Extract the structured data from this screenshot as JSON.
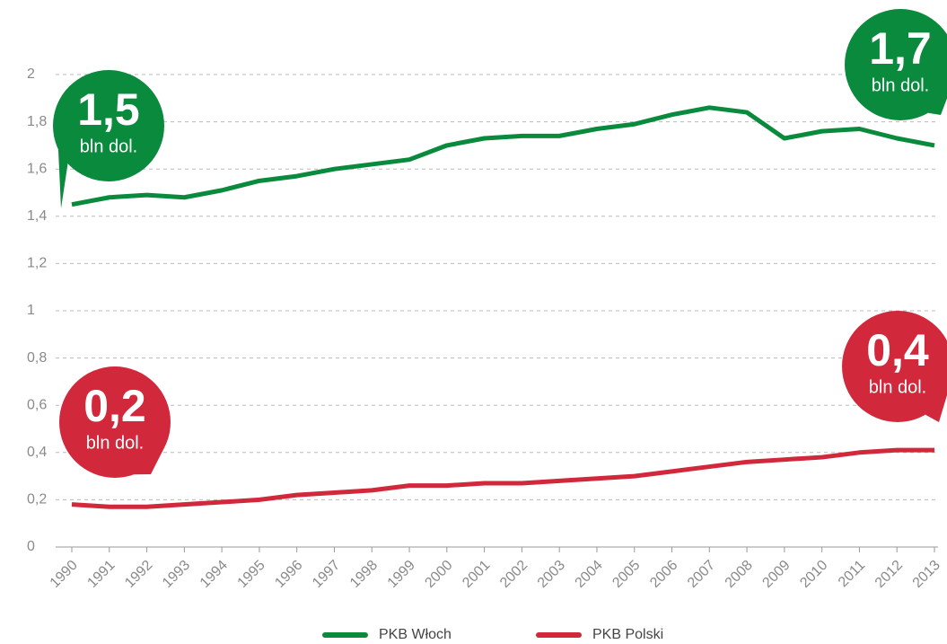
{
  "chart_data": {
    "type": "line",
    "categories": [
      "1990",
      "1991",
      "1992",
      "1993",
      "1994",
      "1995",
      "1996",
      "1997",
      "1998",
      "1999",
      "2000",
      "2001",
      "2002",
      "2003",
      "2004",
      "2005",
      "2006",
      "2007",
      "2008",
      "2009",
      "2010",
      "2011",
      "2012",
      "2013"
    ],
    "series": [
      {
        "name": "PKB Włoch",
        "color": "#0a8a3c",
        "values": [
          1.45,
          1.48,
          1.49,
          1.48,
          1.51,
          1.55,
          1.57,
          1.6,
          1.62,
          1.64,
          1.7,
          1.73,
          1.74,
          1.74,
          1.77,
          1.79,
          1.83,
          1.86,
          1.84,
          1.73,
          1.76,
          1.77,
          1.73,
          1.7
        ]
      },
      {
        "name": "PKB Polski",
        "color": "#d2283c",
        "values": [
          0.18,
          0.17,
          0.17,
          0.18,
          0.19,
          0.2,
          0.22,
          0.23,
          0.24,
          0.26,
          0.26,
          0.27,
          0.27,
          0.28,
          0.29,
          0.3,
          0.32,
          0.34,
          0.36,
          0.37,
          0.38,
          0.4,
          0.41,
          0.41
        ]
      }
    ],
    "ylim": [
      0,
      2
    ],
    "yticks": [
      0,
      {
        "value": 0.2,
        "label": "0,2"
      },
      {
        "value": 0.4,
        "label": "0,4"
      },
      {
        "value": 0.6,
        "label": "0,6"
      },
      {
        "value": 0.8,
        "label": "0,8"
      },
      1,
      {
        "value": 1.2,
        "label": "1,2"
      },
      {
        "value": 1.4,
        "label": "1,4"
      },
      {
        "value": 1.6,
        "label": "1,6"
      },
      {
        "value": 1.8,
        "label": "1,8"
      },
      2
    ],
    "grid": true,
    "annotations": [
      {
        "text": "1,5",
        "note": "bln dol.",
        "color": "#0a8a3c"
      },
      {
        "text": "1,7",
        "note": "bln dol.",
        "color": "#0a8a3c"
      },
      {
        "text": "0,2",
        "note": "bln dol.",
        "color": "#d2283c"
      },
      {
        "text": "0,4",
        "note": "bln dol.",
        "color": "#d2283c"
      }
    ]
  }
}
